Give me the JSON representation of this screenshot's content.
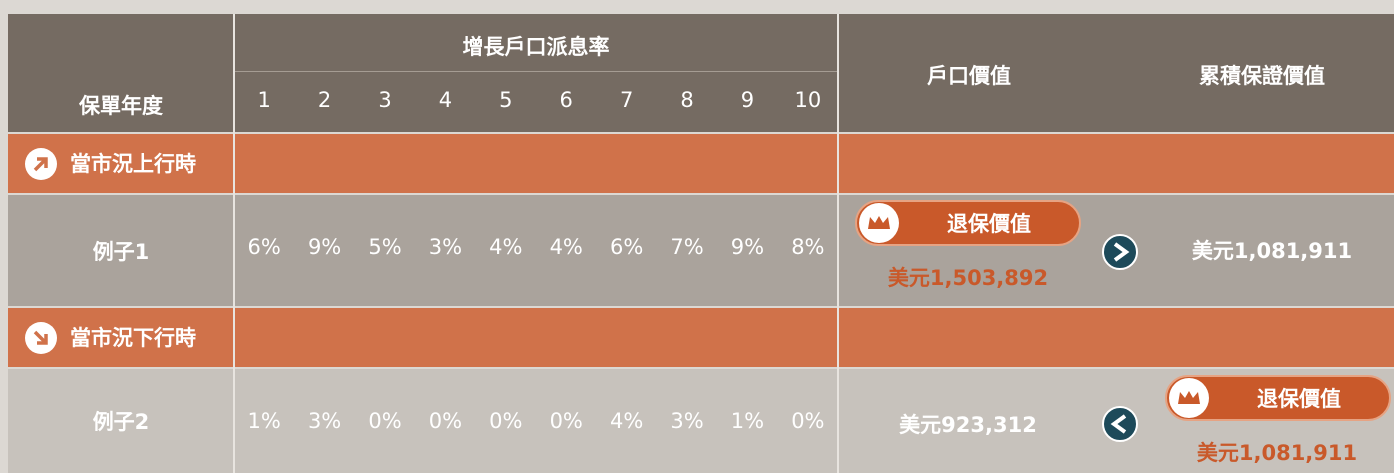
{
  "header": {
    "year_label": "保單年度",
    "rate_group": "增長戶口派息率",
    "years": [
      "1",
      "2",
      "3",
      "4",
      "5",
      "6",
      "7",
      "8",
      "9",
      "10"
    ],
    "account_value": "戶口價值",
    "guaranteed_value": "累積保證價值"
  },
  "sections": [
    {
      "label": "當市況上行時",
      "example": "例子1",
      "rates": [
        "6%",
        "9%",
        "5%",
        "3%",
        "4%",
        "4%",
        "6%",
        "7%",
        "9%",
        "8%"
      ],
      "badge": "退保價值",
      "account_value": "美元1,503,892",
      "guaranteed_value": "美元1,081,911"
    },
    {
      "label": "當市況下行時",
      "example": "例子2",
      "rates": [
        "1%",
        "3%",
        "0%",
        "0%",
        "0%",
        "0%",
        "4%",
        "3%",
        "1%",
        "0%"
      ],
      "account_value": "美元923,312",
      "badge": "退保價值",
      "guaranteed_value": "美元1,081,911"
    }
  ]
}
